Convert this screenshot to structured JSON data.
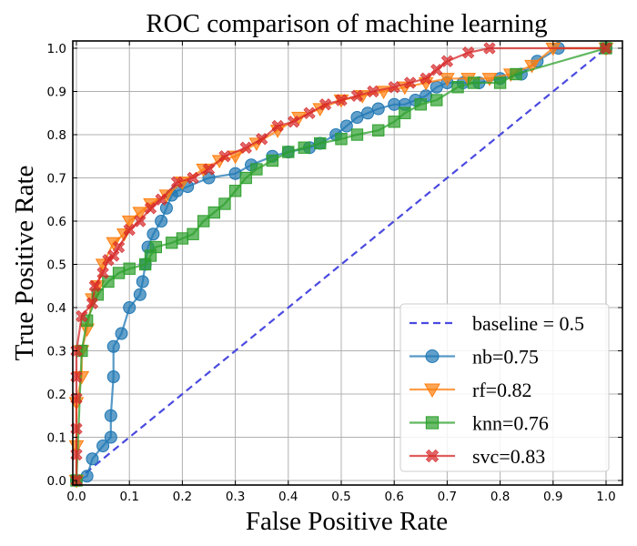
{
  "chart_data": {
    "type": "line",
    "title": "ROC comparison of machine learning",
    "xlabel": "False Positive Rate",
    "ylabel": "True Positive Rate",
    "xlim": [
      0.0,
      1.0
    ],
    "ylim": [
      0.0,
      1.0
    ],
    "x_ticks": [
      "0.0",
      "0.1",
      "0.2",
      "0.3",
      "0.4",
      "0.5",
      "0.6",
      "0.7",
      "0.8",
      "0.9",
      "1.0"
    ],
    "y_ticks": [
      "0.0",
      "0.1",
      "0.2",
      "0.3",
      "0.4",
      "0.5",
      "0.6",
      "0.7",
      "0.8",
      "0.9",
      "1.0"
    ],
    "grid": true,
    "legend_position": "bottom-right",
    "series": [
      {
        "name": "baseline = 0.5",
        "color": "#4a4ae0",
        "style": "dashed",
        "marker": "none",
        "points": [
          [
            0,
            0
          ],
          [
            1,
            1
          ]
        ]
      },
      {
        "name": "nb=0.75",
        "color": "#1f77b4",
        "style": "solid",
        "marker": "circle",
        "points": [
          [
            0,
            0
          ],
          [
            0.02,
            0.01
          ],
          [
            0.03,
            0.05
          ],
          [
            0.05,
            0.08
          ],
          [
            0.065,
            0.1
          ],
          [
            0.065,
            0.15
          ],
          [
            0.07,
            0.24
          ],
          [
            0.07,
            0.31
          ],
          [
            0.085,
            0.34
          ],
          [
            0.1,
            0.4
          ],
          [
            0.12,
            0.43
          ],
          [
            0.125,
            0.46
          ],
          [
            0.13,
            0.5
          ],
          [
            0.135,
            0.54
          ],
          [
            0.145,
            0.57
          ],
          [
            0.16,
            0.6
          ],
          [
            0.17,
            0.63
          ],
          [
            0.18,
            0.66
          ],
          [
            0.19,
            0.67
          ],
          [
            0.21,
            0.68
          ],
          [
            0.25,
            0.7
          ],
          [
            0.3,
            0.71
          ],
          [
            0.33,
            0.73
          ],
          [
            0.37,
            0.75
          ],
          [
            0.4,
            0.76
          ],
          [
            0.44,
            0.77
          ],
          [
            0.46,
            0.78
          ],
          [
            0.49,
            0.8
          ],
          [
            0.51,
            0.82
          ],
          [
            0.53,
            0.84
          ],
          [
            0.55,
            0.85
          ],
          [
            0.57,
            0.86
          ],
          [
            0.6,
            0.87
          ],
          [
            0.62,
            0.87
          ],
          [
            0.64,
            0.88
          ],
          [
            0.66,
            0.89
          ],
          [
            0.68,
            0.91
          ],
          [
            0.7,
            0.92
          ],
          [
            0.73,
            0.92
          ],
          [
            0.76,
            0.92
          ],
          [
            0.8,
            0.93
          ],
          [
            0.84,
            0.94
          ],
          [
            0.87,
            0.97
          ],
          [
            0.91,
            1.0
          ],
          [
            1.0,
            1.0
          ]
        ]
      },
      {
        "name": "rf=0.82",
        "color": "#ff7f0e",
        "style": "solid",
        "marker": "triangle-down",
        "points": [
          [
            0,
            0
          ],
          [
            0,
            0.08
          ],
          [
            0,
            0.18
          ],
          [
            0.01,
            0.24
          ],
          [
            0.01,
            0.3
          ],
          [
            0.02,
            0.35
          ],
          [
            0.03,
            0.42
          ],
          [
            0.04,
            0.45
          ],
          [
            0.05,
            0.5
          ],
          [
            0.07,
            0.55
          ],
          [
            0.09,
            0.57
          ],
          [
            0.1,
            0.6
          ],
          [
            0.12,
            0.62
          ],
          [
            0.14,
            0.64
          ],
          [
            0.17,
            0.66
          ],
          [
            0.2,
            0.69
          ],
          [
            0.24,
            0.72
          ],
          [
            0.27,
            0.74
          ],
          [
            0.3,
            0.75
          ],
          [
            0.34,
            0.78
          ],
          [
            0.38,
            0.81
          ],
          [
            0.42,
            0.84
          ],
          [
            0.46,
            0.86
          ],
          [
            0.5,
            0.88
          ],
          [
            0.54,
            0.89
          ],
          [
            0.58,
            0.9
          ],
          [
            0.62,
            0.91
          ],
          [
            0.66,
            0.92
          ],
          [
            0.7,
            0.93
          ],
          [
            0.74,
            0.93
          ],
          [
            0.78,
            0.93
          ],
          [
            0.82,
            0.94
          ],
          [
            0.86,
            0.96
          ],
          [
            0.9,
            1.0
          ],
          [
            1.0,
            1.0
          ]
        ]
      },
      {
        "name": "knn=0.76",
        "color": "#2ca02c",
        "style": "solid",
        "marker": "square",
        "points": [
          [
            0,
            0
          ],
          [
            0.01,
            0.3
          ],
          [
            0.02,
            0.37
          ],
          [
            0.04,
            0.43
          ],
          [
            0.06,
            0.46
          ],
          [
            0.08,
            0.48
          ],
          [
            0.1,
            0.49
          ],
          [
            0.13,
            0.5
          ],
          [
            0.14,
            0.52
          ],
          [
            0.15,
            0.54
          ],
          [
            0.18,
            0.55
          ],
          [
            0.2,
            0.56
          ],
          [
            0.22,
            0.57
          ],
          [
            0.24,
            0.6
          ],
          [
            0.26,
            0.62
          ],
          [
            0.28,
            0.64
          ],
          [
            0.3,
            0.67
          ],
          [
            0.32,
            0.7
          ],
          [
            0.34,
            0.72
          ],
          [
            0.37,
            0.74
          ],
          [
            0.4,
            0.76
          ],
          [
            0.43,
            0.77
          ],
          [
            0.46,
            0.78
          ],
          [
            0.5,
            0.79
          ],
          [
            0.53,
            0.8
          ],
          [
            0.57,
            0.81
          ],
          [
            0.6,
            0.83
          ],
          [
            0.62,
            0.85
          ],
          [
            0.65,
            0.87
          ],
          [
            0.68,
            0.88
          ],
          [
            0.72,
            0.91
          ],
          [
            0.75,
            0.92
          ],
          [
            0.8,
            0.92
          ],
          [
            0.83,
            0.94
          ],
          [
            1.0,
            1.0
          ]
        ]
      },
      {
        "name": "svc=0.83",
        "color": "#d62728",
        "style": "solid",
        "marker": "x",
        "points": [
          [
            0,
            0
          ],
          [
            0,
            0.06
          ],
          [
            0,
            0.12
          ],
          [
            0,
            0.19
          ],
          [
            0,
            0.24
          ],
          [
            0,
            0.3
          ],
          [
            0.01,
            0.38
          ],
          [
            0.03,
            0.41
          ],
          [
            0.035,
            0.45
          ],
          [
            0.05,
            0.48
          ],
          [
            0.06,
            0.51
          ],
          [
            0.07,
            0.52
          ],
          [
            0.08,
            0.54
          ],
          [
            0.1,
            0.58
          ],
          [
            0.12,
            0.6
          ],
          [
            0.14,
            0.63
          ],
          [
            0.16,
            0.65
          ],
          [
            0.19,
            0.69
          ],
          [
            0.22,
            0.7
          ],
          [
            0.25,
            0.72
          ],
          [
            0.28,
            0.75
          ],
          [
            0.32,
            0.77
          ],
          [
            0.35,
            0.79
          ],
          [
            0.38,
            0.82
          ],
          [
            0.41,
            0.83
          ],
          [
            0.44,
            0.85
          ],
          [
            0.47,
            0.87
          ],
          [
            0.5,
            0.88
          ],
          [
            0.53,
            0.89
          ],
          [
            0.56,
            0.9
          ],
          [
            0.6,
            0.91
          ],
          [
            0.63,
            0.92
          ],
          [
            0.66,
            0.93
          ],
          [
            0.68,
            0.95
          ],
          [
            0.7,
            0.97
          ],
          [
            0.74,
            0.99
          ],
          [
            0.78,
            1.0
          ],
          [
            1.0,
            1.0
          ]
        ]
      }
    ]
  }
}
